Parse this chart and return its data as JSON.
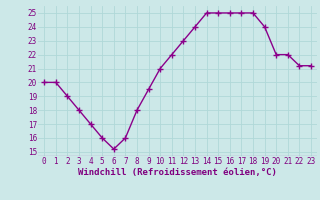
{
  "x": [
    0,
    1,
    2,
    3,
    4,
    5,
    6,
    7,
    8,
    9,
    10,
    11,
    12,
    13,
    14,
    15,
    16,
    17,
    18,
    19,
    20,
    21,
    22,
    23
  ],
  "y": [
    20,
    20,
    19,
    18,
    17,
    16,
    15.2,
    16,
    18,
    19.5,
    21,
    22,
    23,
    24,
    25,
    25,
    25,
    25,
    25,
    24,
    22,
    22,
    21.2,
    21.2
  ],
  "line_color": "#8b008b",
  "marker": "+",
  "marker_size": 4,
  "linewidth": 1.0,
  "xlabel": "Windchill (Refroidissement éolien,°C)",
  "ylim_min": 15,
  "ylim_max": 25.5,
  "xlim_min": -0.5,
  "xlim_max": 23.5,
  "yticks": [
    15,
    16,
    17,
    18,
    19,
    20,
    21,
    22,
    23,
    24,
    25
  ],
  "xticks": [
    0,
    1,
    2,
    3,
    4,
    5,
    6,
    7,
    8,
    9,
    10,
    11,
    12,
    13,
    14,
    15,
    16,
    17,
    18,
    19,
    20,
    21,
    22,
    23
  ],
  "bg_color": "#cce8e8",
  "grid_color": "#b0d8d8",
  "tick_label_fontsize": 5.5,
  "xlabel_fontsize": 6.5,
  "tick_label_color": "#800080",
  "xlabel_color": "#800080",
  "grid_linewidth": 0.6
}
